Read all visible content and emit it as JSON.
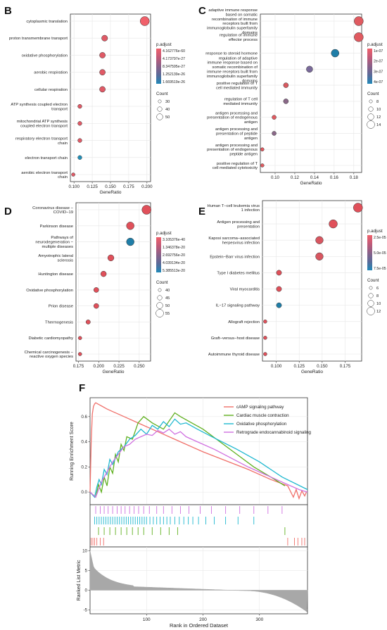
{
  "panels": {
    "B": {
      "letter": "B"
    },
    "C": {
      "letter": "C"
    },
    "D": {
      "letter": "D"
    },
    "E": {
      "letter": "E"
    },
    "F": {
      "letter": "F"
    }
  },
  "chart_data": [
    {
      "id": "B",
      "type": "scatter",
      "xlabel": "GeneRatio",
      "xlim": [
        0.095,
        0.205
      ],
      "xticks": [
        {
          "v": 0.1,
          "label": "0.100"
        },
        {
          "v": 0.125,
          "label": "0.125"
        },
        {
          "v": 0.15,
          "label": "0.150"
        },
        {
          "v": 0.175,
          "label": "0.175"
        },
        {
          "v": 0.2,
          "label": "0.200"
        }
      ],
      "legend_color_title": "p.adjust",
      "legend_color_labels": [
        "4.162776e-60",
        "4.173797e-27",
        "8.347595e-27",
        "1.252139e-26",
        "1.669519e-26"
      ],
      "legend_size_title": "Count",
      "legend_size_labels": [
        "30",
        "40",
        "50"
      ],
      "points": [
        {
          "label": "cytoplasmic translation",
          "x": 0.197,
          "count": 58,
          "color": "#f0606a"
        },
        {
          "label": "proton transmembrane transport",
          "x": 0.142,
          "count": 41,
          "color": "#e05a66"
        },
        {
          "label": "oxidative phosphorylation",
          "x": 0.139,
          "count": 40,
          "color": "#e05a66"
        },
        {
          "label": "aerobic respiration",
          "x": 0.139,
          "count": 40,
          "color": "#e05a66"
        },
        {
          "label": "cellular respiration",
          "x": 0.139,
          "count": 40,
          "color": "#e05a66"
        },
        {
          "label": "ATP synthesis coupled electron transport",
          "x": 0.108,
          "count": 31,
          "color": "#e05a66"
        },
        {
          "label": "mitochondrial ATP synthesis coupled electron transport",
          "x": 0.108,
          "count": 31,
          "color": "#e05a66"
        },
        {
          "label": "respiratory electron transport chain",
          "x": 0.108,
          "count": 31,
          "color": "#e05a66"
        },
        {
          "label": "electron transport chain",
          "x": 0.108,
          "count": 31,
          "color": "#1f8fb8"
        },
        {
          "label": "aerobic electron transport chain",
          "x": 0.099,
          "count": 28,
          "color": "#e05a66"
        }
      ]
    },
    {
      "id": "C",
      "type": "scatter",
      "xlabel": "GeneRatio",
      "xlim": [
        0.085,
        0.188
      ],
      "xticks": [
        {
          "v": 0.1,
          "label": "0.10"
        },
        {
          "v": 0.12,
          "label": "0.12"
        },
        {
          "v": 0.14,
          "label": "0.14"
        },
        {
          "v": 0.16,
          "label": "0.16"
        },
        {
          "v": 0.18,
          "label": "0.18"
        }
      ],
      "legend_color_title": "p.adjust",
      "legend_color_labels": [
        "1e-07",
        "2e-07",
        "3e-07",
        "4e-07"
      ],
      "legend_size_title": "Count",
      "legend_size_labels": [
        "8",
        "10",
        "12",
        "14"
      ],
      "points": [
        {
          "label": "adaptive immune response based on somatic recombination of immune receptors built from immunoglobulin superfamily domains",
          "x": 0.185,
          "count": 15,
          "color": "#e05a60"
        },
        {
          "label": "regulation of immune effector process",
          "x": 0.185,
          "count": 15,
          "color": "#e05a60"
        },
        {
          "label": "response to steroid hormone",
          "x": 0.161,
          "count": 13,
          "color": "#1f7ea8"
        },
        {
          "label": "regulation of adaptive immune response based on somatic recombination of immune receptors built from immunoglobulin superfamily domains",
          "x": 0.135,
          "count": 11,
          "color": "#7a6a9a"
        },
        {
          "label": "positive regulation of T cell mediated immunity",
          "x": 0.111,
          "count": 9,
          "color": "#d85a60"
        },
        {
          "label": "regulation of T cell mediated immunity",
          "x": 0.111,
          "count": 9,
          "color": "#8a6888"
        },
        {
          "label": "antigen processing and presentation of endogenous antigen",
          "x": 0.099,
          "count": 8,
          "color": "#e05a60"
        },
        {
          "label": "antigen processing and presentation of peptide antigen",
          "x": 0.099,
          "count": 8,
          "color": "#8a6888"
        },
        {
          "label": "antigen processing and presentation of endogenous peptide antigen",
          "x": 0.087,
          "count": 7,
          "color": "#e05a60"
        },
        {
          "label": "positive regulation of T cell mediated cytotoxicity",
          "x": 0.087,
          "count": 7,
          "color": "#e05a60"
        }
      ]
    },
    {
      "id": "D",
      "type": "scatter",
      "xlabel": "GeneRatio",
      "xlim": [
        0.172,
        0.264
      ],
      "xticks": [
        {
          "v": 0.175,
          "label": "0.175"
        },
        {
          "v": 0.2,
          "label": "0.200"
        },
        {
          "v": 0.225,
          "label": "0.225"
        },
        {
          "v": 0.25,
          "label": "0.250"
        }
      ],
      "legend_color_title": "p.adjust",
      "legend_color_labels": [
        "3.105376e-40",
        "1.346378e-20",
        "2.692756e-20",
        "4.039134e-20",
        "5.385513e-20"
      ],
      "legend_size_title": "Count",
      "legend_size_labels": [
        "40",
        "45",
        "50",
        "55"
      ],
      "points": [
        {
          "label": "Coronavirus disease − COVID−19",
          "x": 0.259,
          "count": 57,
          "color": "#e0505a"
        },
        {
          "label": "Parkinson disease",
          "x": 0.239,
          "count": 52,
          "color": "#e0505a"
        },
        {
          "label": "Pathways of neurodegeneration − multiple diseases",
          "x": 0.239,
          "count": 52,
          "color": "#1f7ea8"
        },
        {
          "label": "Amyotrophic lateral sclerosis",
          "x": 0.215,
          "count": 47,
          "color": "#e0505a"
        },
        {
          "label": "Huntington disease",
          "x": 0.206,
          "count": 45,
          "color": "#e0505a"
        },
        {
          "label": "Oxidative phosphorylation",
          "x": 0.197,
          "count": 43,
          "color": "#e0505a"
        },
        {
          "label": "Prion disease",
          "x": 0.197,
          "count": 43,
          "color": "#e0505a"
        },
        {
          "label": "Thermogenesis",
          "x": 0.187,
          "count": 41,
          "color": "#e0505a"
        },
        {
          "label": "Diabetic cardiomyopathy",
          "x": 0.177,
          "count": 38,
          "color": "#e0505a"
        },
        {
          "label": "Chemical carcinogenesis − reactive oxygen species",
          "x": 0.177,
          "count": 38,
          "color": "#e0505a"
        }
      ]
    },
    {
      "id": "E",
      "type": "scatter",
      "xlabel": "GeneRatio",
      "xlim": [
        0.085,
        0.193
      ],
      "xticks": [
        {
          "v": 0.1,
          "label": "0.100"
        },
        {
          "v": 0.125,
          "label": "0.125"
        },
        {
          "v": 0.15,
          "label": "0.150"
        },
        {
          "v": 0.175,
          "label": "0.175"
        }
      ],
      "legend_color_title": "p.adjust",
      "legend_color_labels": [
        "2.5e-05",
        "5.0e-05",
        "7.5e-05"
      ],
      "legend_size_title": "Count",
      "legend_size_labels": [
        "6",
        "8",
        "10",
        "12"
      ],
      "points": [
        {
          "label": "Human T−cell leukemia virus 1 infection",
          "x": 0.189,
          "count": 13,
          "color": "#e0505a"
        },
        {
          "label": "Antigen processing and presentation",
          "x": 0.162,
          "count": 12,
          "color": "#e0505a"
        },
        {
          "label": "Kaposi sarcoma−associated herpesvirus infection",
          "x": 0.147,
          "count": 11,
          "color": "#d85660"
        },
        {
          "label": "Epstein−Barr virus infection",
          "x": 0.147,
          "count": 11,
          "color": "#d85660"
        },
        {
          "label": "Type I diabetes mellitus",
          "x": 0.103,
          "count": 8,
          "color": "#e0505a"
        },
        {
          "label": "Viral myocarditis",
          "x": 0.103,
          "count": 8,
          "color": "#e0505a"
        },
        {
          "label": "IL−17 signaling pathway",
          "x": 0.103,
          "count": 8,
          "color": "#1f7ea8"
        },
        {
          "label": "Allograft rejection",
          "x": 0.088,
          "count": 6,
          "color": "#e0505a"
        },
        {
          "label": "Graft−versus−host disease",
          "x": 0.088,
          "count": 6,
          "color": "#e0505a"
        },
        {
          "label": "Autoimmune thyroid disease",
          "x": 0.088,
          "count": 6,
          "color": "#e0505a"
        }
      ]
    },
    {
      "id": "F",
      "type": "line",
      "ylabel_top": "Running Enrichment Score",
      "ylabel_bottom": "Ranked List Metric",
      "xlabel": "Rank in Ordered Dataset",
      "xlim": [
        0,
        385
      ],
      "xticks": [
        100,
        200,
        300
      ],
      "ylim_top": [
        -0.1,
        0.75
      ],
      "yticks_top": [
        0.0,
        0.2,
        0.4,
        0.6
      ],
      "ylim_bottom": [
        -6,
        11
      ],
      "yticks_bottom": [
        -5,
        0,
        5,
        10
      ],
      "series": [
        {
          "name": "cAMP signaling pathway",
          "color": "#f0706a",
          "x": [
            0,
            2,
            4,
            6,
            8,
            10,
            14,
            18,
            22,
            26,
            30,
            40,
            60,
            90,
            120,
            160,
            200,
            240,
            280,
            320,
            350,
            360,
            365,
            370,
            375,
            380,
            383
          ],
          "y": [
            0.0,
            0.4,
            0.62,
            0.68,
            0.7,
            0.71,
            0.7,
            0.69,
            0.68,
            0.67,
            0.66,
            0.64,
            0.6,
            0.54,
            0.48,
            0.4,
            0.32,
            0.25,
            0.18,
            0.1,
            0.05,
            -0.04,
            0.02,
            -0.05,
            0.01,
            -0.03,
            0.0
          ]
        },
        {
          "name": "Cardiac muscle contraction",
          "color": "#60b020",
          "x": [
            0,
            10,
            15,
            20,
            25,
            30,
            35,
            40,
            45,
            50,
            55,
            60,
            65,
            75,
            85,
            95,
            110,
            130,
            150,
            160,
            180,
            200,
            230,
            260,
            290,
            320,
            345
          ],
          "y": [
            0.0,
            -0.04,
            0.06,
            0.0,
            0.12,
            0.05,
            0.2,
            0.15,
            0.3,
            0.24,
            0.38,
            0.33,
            0.44,
            0.42,
            0.55,
            0.6,
            0.55,
            0.5,
            0.63,
            0.6,
            0.55,
            0.5,
            0.4,
            0.3,
            0.2,
            0.12,
            0.05
          ]
        },
        {
          "name": "Oxidative phosphorylation",
          "color": "#20b8d0",
          "x": [
            0,
            8,
            12,
            16,
            20,
            25,
            30,
            35,
            40,
            50,
            60,
            70,
            80,
            90,
            100,
            110,
            120,
            130,
            140,
            150,
            160,
            170,
            190,
            220,
            260,
            300,
            340,
            385
          ],
          "y": [
            0.0,
            -0.04,
            0.04,
            0.1,
            0.06,
            0.18,
            0.14,
            0.26,
            0.22,
            0.32,
            0.36,
            0.42,
            0.45,
            0.5,
            0.46,
            0.53,
            0.5,
            0.56,
            0.52,
            0.58,
            0.54,
            0.55,
            0.5,
            0.43,
            0.34,
            0.24,
            0.12,
            0.02
          ]
        },
        {
          "name": "Retrograde endocannabinoid signaling",
          "color": "#d070e0",
          "x": [
            0,
            10,
            20,
            30,
            40,
            50,
            60,
            70,
            80,
            90,
            100,
            110,
            120,
            130,
            140,
            150,
            160,
            170,
            190,
            220,
            250,
            280,
            310,
            340,
            370,
            385
          ],
          "y": [
            0.0,
            -0.04,
            0.08,
            0.16,
            0.24,
            0.3,
            0.36,
            0.38,
            0.42,
            0.44,
            0.46,
            0.45,
            0.49,
            0.47,
            0.5,
            0.46,
            0.48,
            0.44,
            0.4,
            0.34,
            0.27,
            0.2,
            0.14,
            0.08,
            0.02,
            0.0
          ]
        }
      ],
      "hits": [
        {
          "series": "Retrograde endocannabinoid signaling",
          "color": "#d070e0",
          "x": [
            10,
            18,
            25,
            32,
            40,
            48,
            55,
            62,
            70,
            78,
            86,
            95,
            105,
            118,
            130,
            145,
            160,
            175,
            195,
            215,
            240,
            265,
            290,
            315,
            340
          ]
        },
        {
          "series": "Oxidative phosphorylation",
          "color": "#20b8d0",
          "x": [
            8,
            12,
            16,
            20,
            24,
            28,
            32,
            36,
            40,
            44,
            48,
            52,
            56,
            60,
            64,
            68,
            72,
            76,
            80,
            84,
            88,
            92,
            96,
            100,
            106,
            112,
            118,
            124,
            130,
            136,
            142,
            150,
            158,
            166,
            174,
            182,
            192,
            205,
            220,
            240,
            262,
            290
          ]
        },
        {
          "series": "Cardiac muscle contraction",
          "color": "#60b020",
          "x": [
            15,
            25,
            35,
            45,
            55,
            65,
            75,
            85,
            95,
            110,
            125,
            140,
            155,
            345
          ]
        },
        {
          "series": "cAMP signaling pathway",
          "color": "#f0706a",
          "x": [
            2,
            5,
            8,
            12,
            18,
            24,
            350,
            362,
            368,
            375,
            380
          ]
        }
      ]
    }
  ]
}
